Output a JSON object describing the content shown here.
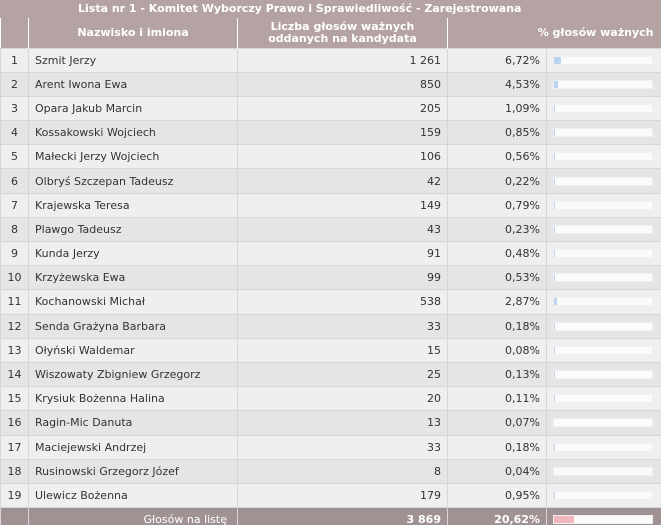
{
  "caption": "Lista nr 1 - Komitet Wyborczy Prawo i Sprawiedliwość - Zarejestrowana",
  "columns": {
    "num": "",
    "name": "Nazwisko i imiona",
    "votes": "Liczba głosów ważnych oddanych na kandydata",
    "pct": "% głosów ważnych"
  },
  "rows": [
    {
      "num": "1",
      "name": "Szmit Jerzy",
      "votes": "1 261",
      "pct": "6,72%",
      "share": 6.72
    },
    {
      "num": "2",
      "name": "Arent Iwona Ewa",
      "votes": "850",
      "pct": "4,53%",
      "share": 4.53
    },
    {
      "num": "3",
      "name": "Opara Jakub Marcin",
      "votes": "205",
      "pct": "1,09%",
      "share": 1.09
    },
    {
      "num": "4",
      "name": "Kossakowski Wojciech",
      "votes": "159",
      "pct": "0,85%",
      "share": 0.85
    },
    {
      "num": "5",
      "name": "Małecki Jerzy Wojciech",
      "votes": "106",
      "pct": "0,56%",
      "share": 0.56
    },
    {
      "num": "6",
      "name": "Olbryś Szczepan Tadeusz",
      "votes": "42",
      "pct": "0,22%",
      "share": 0.22
    },
    {
      "num": "7",
      "name": "Krajewska Teresa",
      "votes": "149",
      "pct": "0,79%",
      "share": 0.79
    },
    {
      "num": "8",
      "name": "Plawgo Tadeusz",
      "votes": "43",
      "pct": "0,23%",
      "share": 0.23
    },
    {
      "num": "9",
      "name": "Kunda Jerzy",
      "votes": "91",
      "pct": "0,48%",
      "share": 0.48
    },
    {
      "num": "10",
      "name": "Krzyżewska Ewa",
      "votes": "99",
      "pct": "0,53%",
      "share": 0.53
    },
    {
      "num": "11",
      "name": "Kochanowski Michał",
      "votes": "538",
      "pct": "2,87%",
      "share": 2.87
    },
    {
      "num": "12",
      "name": "Senda Grażyna Barbara",
      "votes": "33",
      "pct": "0,18%",
      "share": 0.18
    },
    {
      "num": "13",
      "name": "Ołyński Waldemar",
      "votes": "15",
      "pct": "0,08%",
      "share": 0.08
    },
    {
      "num": "14",
      "name": "Wiszowaty Zbigniew Grzegorz",
      "votes": "25",
      "pct": "0,13%",
      "share": 0.13
    },
    {
      "num": "15",
      "name": "Krysiuk Bożenna Halina",
      "votes": "20",
      "pct": "0,11%",
      "share": 0.11
    },
    {
      "num": "16",
      "name": "Ragin-Mic Danuta",
      "votes": "13",
      "pct": "0,07%",
      "share": 0.07
    },
    {
      "num": "17",
      "name": "Maciejewski Andrzej",
      "votes": "33",
      "pct": "0,18%",
      "share": 0.18
    },
    {
      "num": "18",
      "name": "Rusinowski Grzegorz Józef",
      "votes": "8",
      "pct": "0,04%",
      "share": 0.04
    },
    {
      "num": "19",
      "name": "Ulewicz Bożenna",
      "votes": "179",
      "pct": "0,95%",
      "share": 0.95
    }
  ],
  "footer": {
    "label": "Głosów na listę",
    "votes": "3 869",
    "pct": "20,62%",
    "share": 20.62
  },
  "colors": {
    "header_bg": "#b5a2a3",
    "footer_bg": "#a09293",
    "bar_fill": "#bcd3f2",
    "sum_bar_fill": "#f0b8bc"
  }
}
